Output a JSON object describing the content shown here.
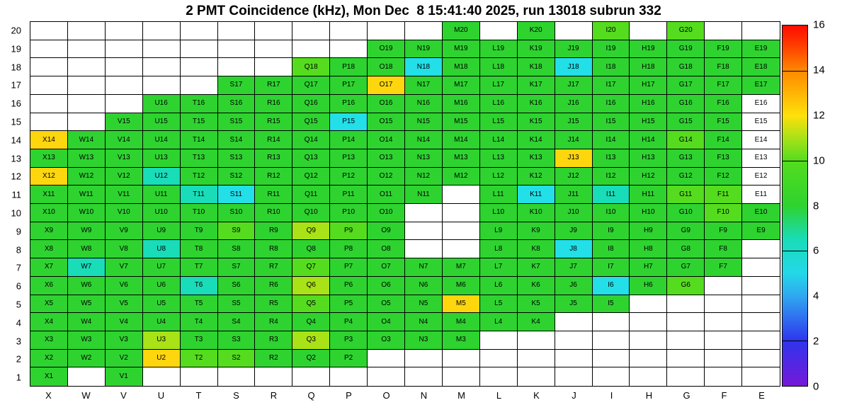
{
  "title": "2 PMT Coincidence (kHz), Mon Dec  8 15:41:40 2025, run 13018 subrun 332",
  "chart_data": {
    "type": "heatmap",
    "title": "2 PMT Coincidence (kHz), Mon Dec  8 15:41:40 2025, run 13018 subrun 332",
    "value_unit": "kHz",
    "x_categories": [
      "X",
      "W",
      "V",
      "U",
      "T",
      "S",
      "R",
      "Q",
      "P",
      "O",
      "N",
      "M",
      "L",
      "K",
      "J",
      "I",
      "H",
      "G",
      "F",
      "E"
    ],
    "y_categories": [
      "1",
      "2",
      "3",
      "4",
      "5",
      "6",
      "7",
      "8",
      "9",
      "10",
      "11",
      "12",
      "13",
      "14",
      "15",
      "16",
      "17",
      "18",
      "19",
      "20"
    ],
    "colorbar": {
      "min": 0,
      "max": 16,
      "labels": [
        "0",
        "2",
        "4",
        "6",
        "8",
        "10",
        "12",
        "14",
        "16"
      ],
      "bar_tick_values": [
        2,
        6,
        10,
        14
      ],
      "gradient_stops": [
        {
          "value": 0,
          "color": "#7519d8"
        },
        {
          "value": 2,
          "color": "#2f35ee"
        },
        {
          "value": 4,
          "color": "#2fa8f0"
        },
        {
          "value": 5,
          "color": "#23d8e8"
        },
        {
          "value": 6.5,
          "color": "#19dcb8"
        },
        {
          "value": 8,
          "color": "#2ed330"
        },
        {
          "value": 10,
          "color": "#55dc1e"
        },
        {
          "value": 11,
          "color": "#a8e217"
        },
        {
          "value": 12,
          "color": "#fee00a"
        },
        {
          "value": 13,
          "color": "#ffb405"
        },
        {
          "value": 14,
          "color": "#ff8800"
        },
        {
          "value": 15,
          "color": "#ff4400"
        },
        {
          "value": 16,
          "color": "#ff0a00"
        }
      ]
    },
    "palette_legend": {
      "g": {
        "name": "green",
        "hex": "#2ed330",
        "approx_value": 9
      },
      "g2": {
        "name": "bright-green",
        "hex": "#55dc1e",
        "approx_value": 10
      },
      "yg": {
        "name": "yellow-green",
        "hex": "#a8e217",
        "approx_value": 11
      },
      "y": {
        "name": "yellow",
        "hex": "#fed60d",
        "approx_value": 12
      },
      "t": {
        "name": "teal",
        "hex": "#19dcb8",
        "approx_value": 6.5
      },
      "c": {
        "name": "cyan",
        "hex": "#22dfe8",
        "approx_value": 5
      },
      "w": {
        "name": "no-fill",
        "hex": "#ffffff",
        "approx_value": 0
      }
    },
    "cells": [
      [
        "X1",
        "g"
      ],
      [
        "V1",
        "g"
      ],
      [
        "X2",
        "g"
      ],
      [
        "W2",
        "g"
      ],
      [
        "V2",
        "g"
      ],
      [
        "U2",
        "y"
      ],
      [
        "T2",
        "g2"
      ],
      [
        "S2",
        "g2"
      ],
      [
        "R2",
        "g"
      ],
      [
        "Q2",
        "g"
      ],
      [
        "P2",
        "g"
      ],
      [
        "X3",
        "g"
      ],
      [
        "W3",
        "g"
      ],
      [
        "V3",
        "g"
      ],
      [
        "U3",
        "yg"
      ],
      [
        "T3",
        "g"
      ],
      [
        "S3",
        "g"
      ],
      [
        "R3",
        "g"
      ],
      [
        "Q3",
        "yg"
      ],
      [
        "P3",
        "g"
      ],
      [
        "O3",
        "g"
      ],
      [
        "N3",
        "g"
      ],
      [
        "M3",
        "g"
      ],
      [
        "X4",
        "g"
      ],
      [
        "W4",
        "g"
      ],
      [
        "V4",
        "g"
      ],
      [
        "U4",
        "g"
      ],
      [
        "T4",
        "g"
      ],
      [
        "S4",
        "g"
      ],
      [
        "R4",
        "g"
      ],
      [
        "Q4",
        "g"
      ],
      [
        "P4",
        "g"
      ],
      [
        "O4",
        "g"
      ],
      [
        "N4",
        "g"
      ],
      [
        "M4",
        "g"
      ],
      [
        "L4",
        "g"
      ],
      [
        "K4",
        "g"
      ],
      [
        "X5",
        "g"
      ],
      [
        "W5",
        "g"
      ],
      [
        "V5",
        "g"
      ],
      [
        "U5",
        "g"
      ],
      [
        "T5",
        "g"
      ],
      [
        "S5",
        "g"
      ],
      [
        "R5",
        "g"
      ],
      [
        "Q5",
        "g2"
      ],
      [
        "P5",
        "g"
      ],
      [
        "O5",
        "g"
      ],
      [
        "N5",
        "g"
      ],
      [
        "M5",
        "y"
      ],
      [
        "L5",
        "g"
      ],
      [
        "K5",
        "g"
      ],
      [
        "J5",
        "g"
      ],
      [
        "I5",
        "g"
      ],
      [
        "X6",
        "g"
      ],
      [
        "W6",
        "g"
      ],
      [
        "V6",
        "g"
      ],
      [
        "U6",
        "g"
      ],
      [
        "T6",
        "t"
      ],
      [
        "S6",
        "g"
      ],
      [
        "R6",
        "g"
      ],
      [
        "Q6",
        "yg"
      ],
      [
        "P6",
        "g"
      ],
      [
        "O6",
        "g"
      ],
      [
        "N6",
        "g"
      ],
      [
        "M6",
        "g"
      ],
      [
        "L6",
        "g"
      ],
      [
        "K6",
        "g"
      ],
      [
        "J6",
        "g"
      ],
      [
        "I6",
        "c"
      ],
      [
        "H6",
        "g"
      ],
      [
        "G6",
        "g2"
      ],
      [
        "X7",
        "g"
      ],
      [
        "W7",
        "t"
      ],
      [
        "V7",
        "g"
      ],
      [
        "U7",
        "g"
      ],
      [
        "T7",
        "g"
      ],
      [
        "S7",
        "g"
      ],
      [
        "R7",
        "g"
      ],
      [
        "Q7",
        "g2"
      ],
      [
        "P7",
        "g"
      ],
      [
        "O7",
        "g"
      ],
      [
        "N7",
        "g"
      ],
      [
        "M7",
        "g"
      ],
      [
        "L7",
        "g"
      ],
      [
        "K7",
        "g"
      ],
      [
        "J7",
        "g"
      ],
      [
        "I7",
        "g"
      ],
      [
        "H7",
        "g"
      ],
      [
        "G7",
        "g"
      ],
      [
        "F7",
        "g"
      ],
      [
        "X8",
        "g"
      ],
      [
        "W8",
        "g"
      ],
      [
        "V8",
        "g"
      ],
      [
        "U8",
        "t"
      ],
      [
        "T8",
        "g"
      ],
      [
        "S8",
        "g"
      ],
      [
        "R8",
        "g"
      ],
      [
        "Q8",
        "g"
      ],
      [
        "P8",
        "g"
      ],
      [
        "O8",
        "g"
      ],
      [
        "L8",
        "g"
      ],
      [
        "K8",
        "g"
      ],
      [
        "J8",
        "c"
      ],
      [
        "I8",
        "g"
      ],
      [
        "H8",
        "g"
      ],
      [
        "G8",
        "g"
      ],
      [
        "F8",
        "g"
      ],
      [
        "X9",
        "g"
      ],
      [
        "W9",
        "g"
      ],
      [
        "V9",
        "g"
      ],
      [
        "U9",
        "g"
      ],
      [
        "T9",
        "g"
      ],
      [
        "S9",
        "g2"
      ],
      [
        "R9",
        "g"
      ],
      [
        "Q9",
        "yg"
      ],
      [
        "P9",
        "g2"
      ],
      [
        "O9",
        "g"
      ],
      [
        "L9",
        "g"
      ],
      [
        "K9",
        "g"
      ],
      [
        "J9",
        "g"
      ],
      [
        "I9",
        "g"
      ],
      [
        "H9",
        "g"
      ],
      [
        "G9",
        "g"
      ],
      [
        "F9",
        "g"
      ],
      [
        "E9",
        "g"
      ],
      [
        "X10",
        "g"
      ],
      [
        "W10",
        "g"
      ],
      [
        "V10",
        "g"
      ],
      [
        "U10",
        "g"
      ],
      [
        "T10",
        "g"
      ],
      [
        "S10",
        "g"
      ],
      [
        "R10",
        "g"
      ],
      [
        "Q10",
        "g"
      ],
      [
        "P10",
        "g"
      ],
      [
        "O10",
        "g"
      ],
      [
        "L10",
        "g"
      ],
      [
        "K10",
        "g"
      ],
      [
        "J10",
        "g"
      ],
      [
        "I10",
        "g"
      ],
      [
        "H10",
        "g"
      ],
      [
        "G10",
        "g"
      ],
      [
        "F10",
        "g2"
      ],
      [
        "E10",
        "g"
      ],
      [
        "X11",
        "g"
      ],
      [
        "W11",
        "g"
      ],
      [
        "V11",
        "g"
      ],
      [
        "U11",
        "g"
      ],
      [
        "T11",
        "t"
      ],
      [
        "S11",
        "c"
      ],
      [
        "R11",
        "g"
      ],
      [
        "Q11",
        "g"
      ],
      [
        "P11",
        "g"
      ],
      [
        "O11",
        "g"
      ],
      [
        "N11",
        "g"
      ],
      [
        "L11",
        "g"
      ],
      [
        "K11",
        "c"
      ],
      [
        "J11",
        "g"
      ],
      [
        "I11",
        "t"
      ],
      [
        "H11",
        "g"
      ],
      [
        "G11",
        "g2"
      ],
      [
        "F11",
        "g2"
      ],
      [
        "E11",
        "w"
      ],
      [
        "X12",
        "y"
      ],
      [
        "W12",
        "g"
      ],
      [
        "V12",
        "g"
      ],
      [
        "U12",
        "t"
      ],
      [
        "T12",
        "g"
      ],
      [
        "S12",
        "g"
      ],
      [
        "R12",
        "g"
      ],
      [
        "Q12",
        "g"
      ],
      [
        "P12",
        "g"
      ],
      [
        "O12",
        "g"
      ],
      [
        "N12",
        "g"
      ],
      [
        "M12",
        "g"
      ],
      [
        "L12",
        "g"
      ],
      [
        "K12",
        "g"
      ],
      [
        "J12",
        "g"
      ],
      [
        "I12",
        "g"
      ],
      [
        "H12",
        "g"
      ],
      [
        "G12",
        "g"
      ],
      [
        "F12",
        "g"
      ],
      [
        "E12",
        "w"
      ],
      [
        "X13",
        "g"
      ],
      [
        "W13",
        "g"
      ],
      [
        "V13",
        "g"
      ],
      [
        "U13",
        "g"
      ],
      [
        "T13",
        "g"
      ],
      [
        "S13",
        "g"
      ],
      [
        "R13",
        "g"
      ],
      [
        "Q13",
        "g"
      ],
      [
        "P13",
        "g"
      ],
      [
        "O13",
        "g"
      ],
      [
        "N13",
        "g"
      ],
      [
        "M13",
        "g"
      ],
      [
        "L13",
        "g"
      ],
      [
        "K13",
        "g"
      ],
      [
        "J13",
        "y"
      ],
      [
        "I13",
        "g"
      ],
      [
        "H13",
        "g"
      ],
      [
        "G13",
        "g"
      ],
      [
        "F13",
        "g"
      ],
      [
        "E13",
        "w"
      ],
      [
        "X14",
        "y"
      ],
      [
        "W14",
        "g"
      ],
      [
        "V14",
        "g"
      ],
      [
        "U14",
        "g"
      ],
      [
        "T14",
        "g"
      ],
      [
        "S14",
        "g"
      ],
      [
        "R14",
        "g"
      ],
      [
        "Q14",
        "g"
      ],
      [
        "P14",
        "g"
      ],
      [
        "O14",
        "g"
      ],
      [
        "N14",
        "g"
      ],
      [
        "M14",
        "g"
      ],
      [
        "L14",
        "g"
      ],
      [
        "K14",
        "g"
      ],
      [
        "J14",
        "g"
      ],
      [
        "I14",
        "g"
      ],
      [
        "H14",
        "g"
      ],
      [
        "G14",
        "g2"
      ],
      [
        "F14",
        "g"
      ],
      [
        "E14",
        "w"
      ],
      [
        "V15",
        "g"
      ],
      [
        "U15",
        "g"
      ],
      [
        "T15",
        "g"
      ],
      [
        "S15",
        "g"
      ],
      [
        "R15",
        "g"
      ],
      [
        "Q15",
        "g"
      ],
      [
        "P15",
        "c"
      ],
      [
        "O15",
        "g"
      ],
      [
        "N15",
        "g"
      ],
      [
        "M15",
        "g"
      ],
      [
        "L15",
        "g"
      ],
      [
        "K15",
        "g"
      ],
      [
        "J15",
        "g"
      ],
      [
        "I15",
        "g"
      ],
      [
        "H15",
        "g"
      ],
      [
        "G15",
        "g"
      ],
      [
        "F15",
        "g"
      ],
      [
        "E15",
        "w"
      ],
      [
        "U16",
        "g"
      ],
      [
        "T16",
        "g"
      ],
      [
        "S16",
        "g"
      ],
      [
        "R16",
        "g"
      ],
      [
        "Q16",
        "g"
      ],
      [
        "P16",
        "g"
      ],
      [
        "O16",
        "g"
      ],
      [
        "N16",
        "g"
      ],
      [
        "M16",
        "g"
      ],
      [
        "L16",
        "g"
      ],
      [
        "K16",
        "g"
      ],
      [
        "J16",
        "g"
      ],
      [
        "I16",
        "g"
      ],
      [
        "H16",
        "g"
      ],
      [
        "G16",
        "g"
      ],
      [
        "F16",
        "g"
      ],
      [
        "E16",
        "w"
      ],
      [
        "S17",
        "g"
      ],
      [
        "R17",
        "g"
      ],
      [
        "Q17",
        "g"
      ],
      [
        "P17",
        "g"
      ],
      [
        "O17",
        "y"
      ],
      [
        "N17",
        "g"
      ],
      [
        "M17",
        "g"
      ],
      [
        "L17",
        "g"
      ],
      [
        "K17",
        "g"
      ],
      [
        "J17",
        "g"
      ],
      [
        "I17",
        "g"
      ],
      [
        "H17",
        "g"
      ],
      [
        "G17",
        "g"
      ],
      [
        "F17",
        "g"
      ],
      [
        "E17",
        "g"
      ],
      [
        "Q18",
        "g2"
      ],
      [
        "P18",
        "g"
      ],
      [
        "O18",
        "g"
      ],
      [
        "N18",
        "c"
      ],
      [
        "M18",
        "g"
      ],
      [
        "L18",
        "g"
      ],
      [
        "K18",
        "g"
      ],
      [
        "J18",
        "c"
      ],
      [
        "I18",
        "g"
      ],
      [
        "H18",
        "g"
      ],
      [
        "G18",
        "g"
      ],
      [
        "F18",
        "g"
      ],
      [
        "E18",
        "g"
      ],
      [
        "O19",
        "g"
      ],
      [
        "N19",
        "g"
      ],
      [
        "M19",
        "g"
      ],
      [
        "L19",
        "g"
      ],
      [
        "K19",
        "g"
      ],
      [
        "J19",
        "g"
      ],
      [
        "I19",
        "g"
      ],
      [
        "H19",
        "g"
      ],
      [
        "G19",
        "g"
      ],
      [
        "F19",
        "g"
      ],
      [
        "E19",
        "g"
      ],
      [
        "M20",
        "g"
      ],
      [
        "K20",
        "g"
      ],
      [
        "I20",
        "g2"
      ],
      [
        "G20",
        "g2"
      ]
    ]
  }
}
